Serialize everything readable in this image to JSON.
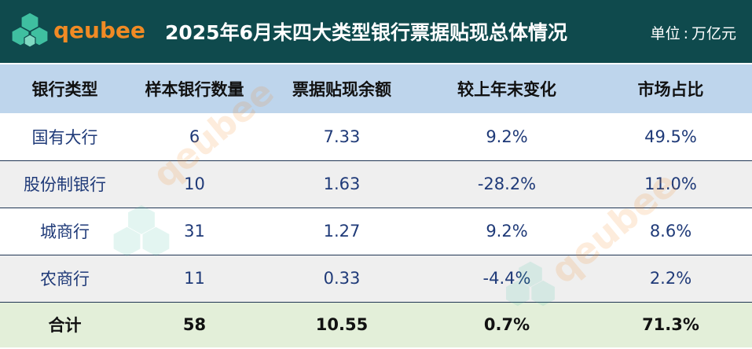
{
  "header": {
    "logo_text": "qeubee",
    "title": "2025年6月末四大类型银行票据贴现总体情况",
    "unit_label": "单位",
    "unit_value": "万亿元",
    "background_color": "#0f4a4d",
    "logo_color": "#f08a24"
  },
  "table": {
    "columns": [
      "银行类型",
      "样本银行数量",
      "票据贴现余额",
      "较上年末变化",
      "市场占比"
    ],
    "rows": [
      {
        "type": "国有大行",
        "count": "6",
        "balance": "7.33",
        "change": "9.2%",
        "share": "49.5%"
      },
      {
        "type": "股份制银行",
        "count": "10",
        "balance": "1.63",
        "change": "-28.2%",
        "share": "11.0%"
      },
      {
        "type": "城商行",
        "count": "31",
        "balance": "1.27",
        "change": "9.2%",
        "share": "8.6%"
      },
      {
        "type": "农商行",
        "count": "11",
        "balance": "0.33",
        "change": "-4.4%",
        "share": "2.2%"
      }
    ],
    "total": {
      "type": "合计",
      "count": "58",
      "balance": "10.55",
      "change": "0.7%",
      "share": "71.3%"
    },
    "header_color": "#bed5ec",
    "total_color": "#e3efd9",
    "value_color": "#1f3a78"
  },
  "watermark": {
    "text": "qeubee"
  }
}
